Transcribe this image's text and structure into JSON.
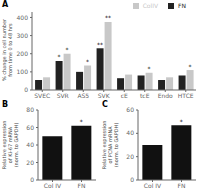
{
  "chart_data": [
    {
      "type": "bar",
      "title": "A",
      "categories": [
        "SVEC",
        "SVR",
        "AS5",
        "SVK",
        "cE",
        "tcE",
        "Endo",
        "HTCE"
      ],
      "series": [
        {
          "name": "FN",
          "color": "#222222",
          "values": [
            55,
            160,
            100,
            230,
            65,
            80,
            55,
            80
          ]
        },
        {
          "name": "ColIV",
          "color": "#c8c8c8",
          "values": [
            70,
            200,
            135,
            375,
            85,
            95,
            70,
            110
          ]
        }
      ],
      "ylabel": "% change in cell number\nfrom time 0 to 48 hrs",
      "ylim": [
        0,
        430
      ],
      "yticks": [
        0,
        100,
        200,
        300,
        400
      ],
      "legend": "upper right",
      "grid": false,
      "annotations": [
        {
          "text": "*",
          "category": "SVR",
          "series": "FN"
        },
        {
          "text": "**",
          "category": "SVK",
          "series": "FN"
        },
        {
          "text": "*",
          "category": "SVR",
          "series": "ColIV"
        },
        {
          "text": "*",
          "category": "AS5",
          "series": "ColIV"
        },
        {
          "text": "**",
          "category": "SVK",
          "series": "ColIV"
        },
        {
          "text": "*",
          "category": "tcE",
          "series": "ColIV"
        },
        {
          "text": "*",
          "category": "HTCE",
          "series": "ColIV"
        }
      ]
    },
    {
      "type": "bar",
      "title": "B",
      "categories": [
        "Col IV",
        "FN"
      ],
      "values": [
        50,
        62
      ],
      "color": "#111111",
      "ylabel": "Relative expression\nof Ki-67 mRNA\n(norm. to GAPDH)",
      "ylim": [
        0,
        80
      ],
      "yticks": [
        0,
        20,
        40,
        60,
        80
      ],
      "grid": false,
      "annotations": [
        {
          "text": "*",
          "category": "FN"
        }
      ]
    },
    {
      "type": "bar",
      "title": "C",
      "categories": [
        "Col IV",
        "FN"
      ],
      "values": [
        30,
        47
      ],
      "color": "#111111",
      "ylabel": "Relative expression\nof PCNA mRNA\n(norm. to GAPDH)",
      "ylim": [
        0,
        60
      ],
      "yticks": [
        0,
        20,
        40,
        60
      ],
      "grid": false,
      "annotations": [
        {
          "text": "*",
          "category": "FN"
        }
      ]
    }
  ]
}
